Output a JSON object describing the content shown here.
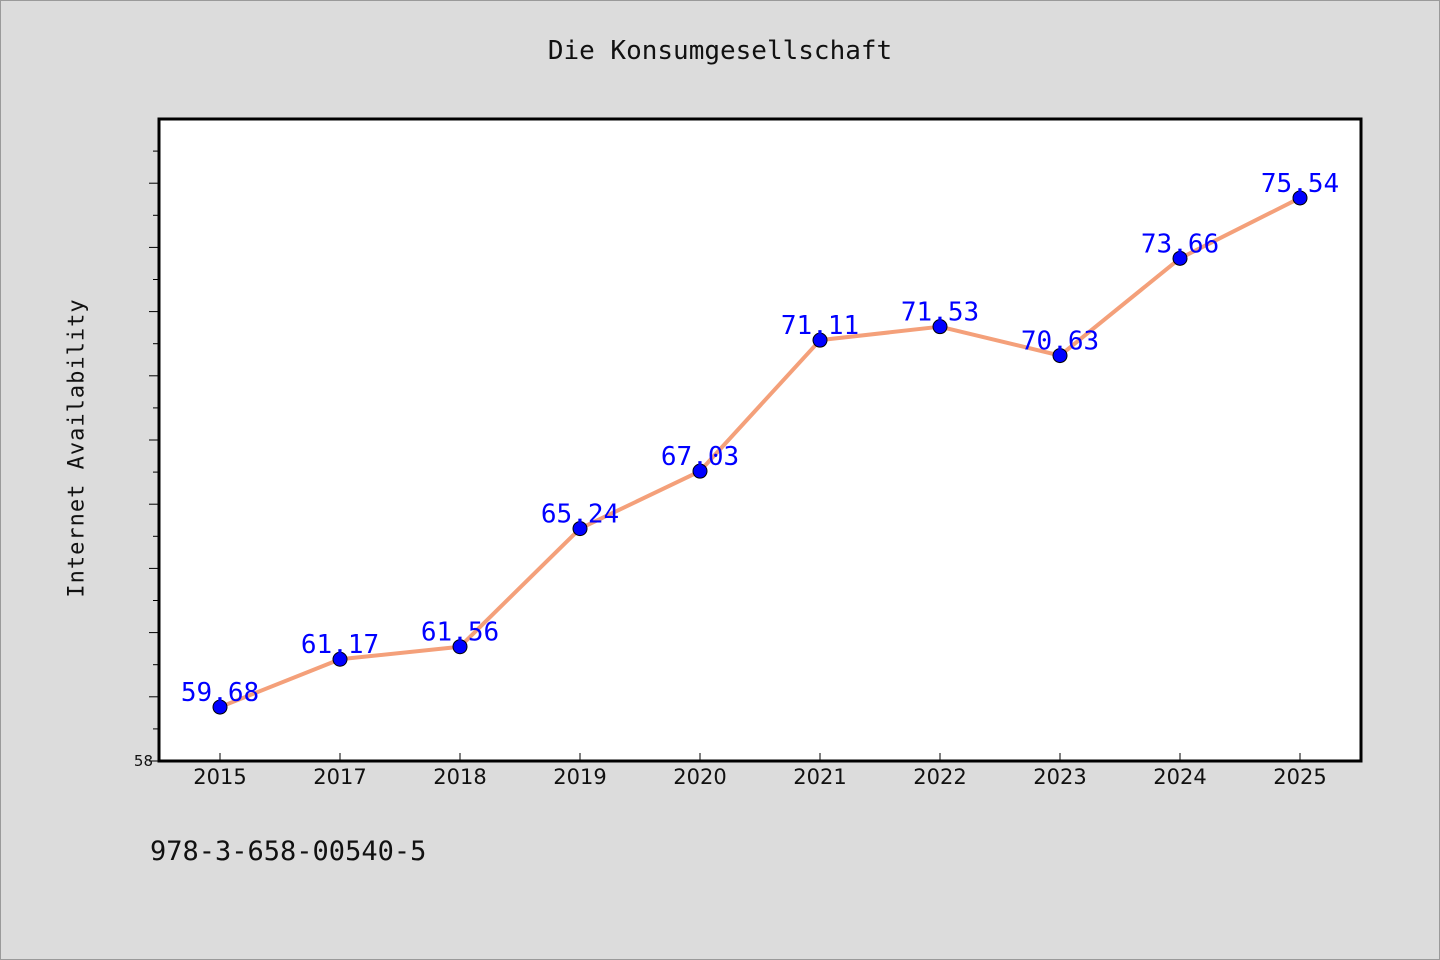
{
  "chart_data": {
    "type": "line",
    "title": "Die Konsumgesellschaft",
    "xlabel": "",
    "ylabel": "Internet Availability",
    "categories": [
      "2015",
      "2017",
      "2018",
      "2019",
      "2020",
      "2021",
      "2022",
      "2023",
      "2024",
      "2025"
    ],
    "series": [
      {
        "values": [
          59.68,
          61.17,
          61.56,
          65.24,
          67.03,
          71.11,
          71.53,
          70.63,
          73.66,
          75.54
        ],
        "data_labels": [
          "59.68",
          "61.17",
          "61.56",
          "65.24",
          "67.03",
          "71.11",
          "71.53",
          "70.63",
          "73.66",
          "75.54"
        ]
      }
    ],
    "ylim": [
      58,
      78
    ],
    "ytick_labels": [
      "58"
    ],
    "grid": false,
    "legend": "none",
    "colors": {
      "line": "#f4a07a",
      "marker": "#0000ff",
      "label": "#0000ff",
      "plot_background": "#ffffff",
      "page_background": "#dcdcdc"
    }
  },
  "footer": {
    "isbn": "978-3-658-00540-5"
  }
}
